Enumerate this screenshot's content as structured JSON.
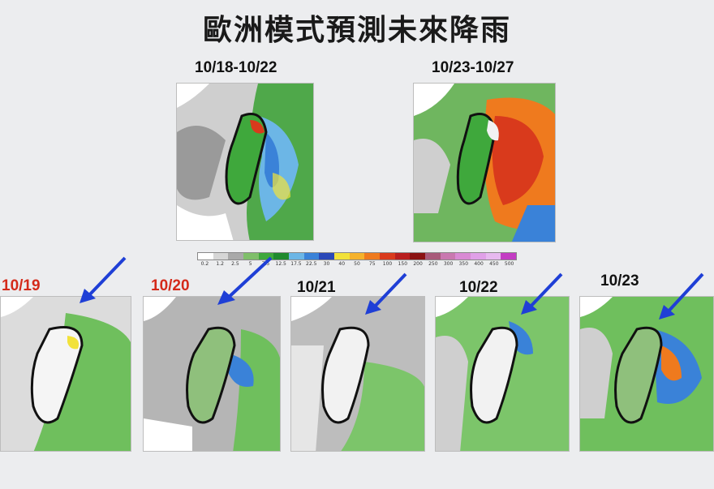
{
  "title": "歐洲模式預測未來降雨",
  "top_panels": [
    {
      "label": "10/18-10/22"
    },
    {
      "label": "10/23-10/27"
    }
  ],
  "daily_panels": [
    {
      "label": "10/19",
      "label_color": "#d42a1a"
    },
    {
      "label": "10/20",
      "label_color": "#d42a1a"
    },
    {
      "label": "10/21",
      "label_color": "#111111"
    },
    {
      "label": "10/22",
      "label_color": "#111111"
    },
    {
      "label": "10/23",
      "label_color": "#111111"
    }
  ],
  "legend": {
    "ticks": [
      "0.2",
      "1.2",
      "2.5",
      "5",
      "7.5",
      "12.5",
      "17.5",
      "22.5",
      "30",
      "40",
      "50",
      "75",
      "100",
      "150",
      "200",
      "250",
      "300",
      "350",
      "400",
      "450",
      "500"
    ],
    "colors": [
      "#ffffff",
      "#d6d6d6",
      "#a9a9a9",
      "#7fbf6a",
      "#3fa83c",
      "#1f8a2e",
      "#6cb6e6",
      "#3a82d8",
      "#2a48b8",
      "#f2e23a",
      "#f5b22c",
      "#ef7a1e",
      "#d93a1c",
      "#b81e1e",
      "#8a1212",
      "#a85a7a",
      "#c978b0",
      "#d98ad4",
      "#e0a0e8",
      "#e7b9ef",
      "#c33cc3"
    ]
  },
  "arrow_color": "#1f3fd6"
}
